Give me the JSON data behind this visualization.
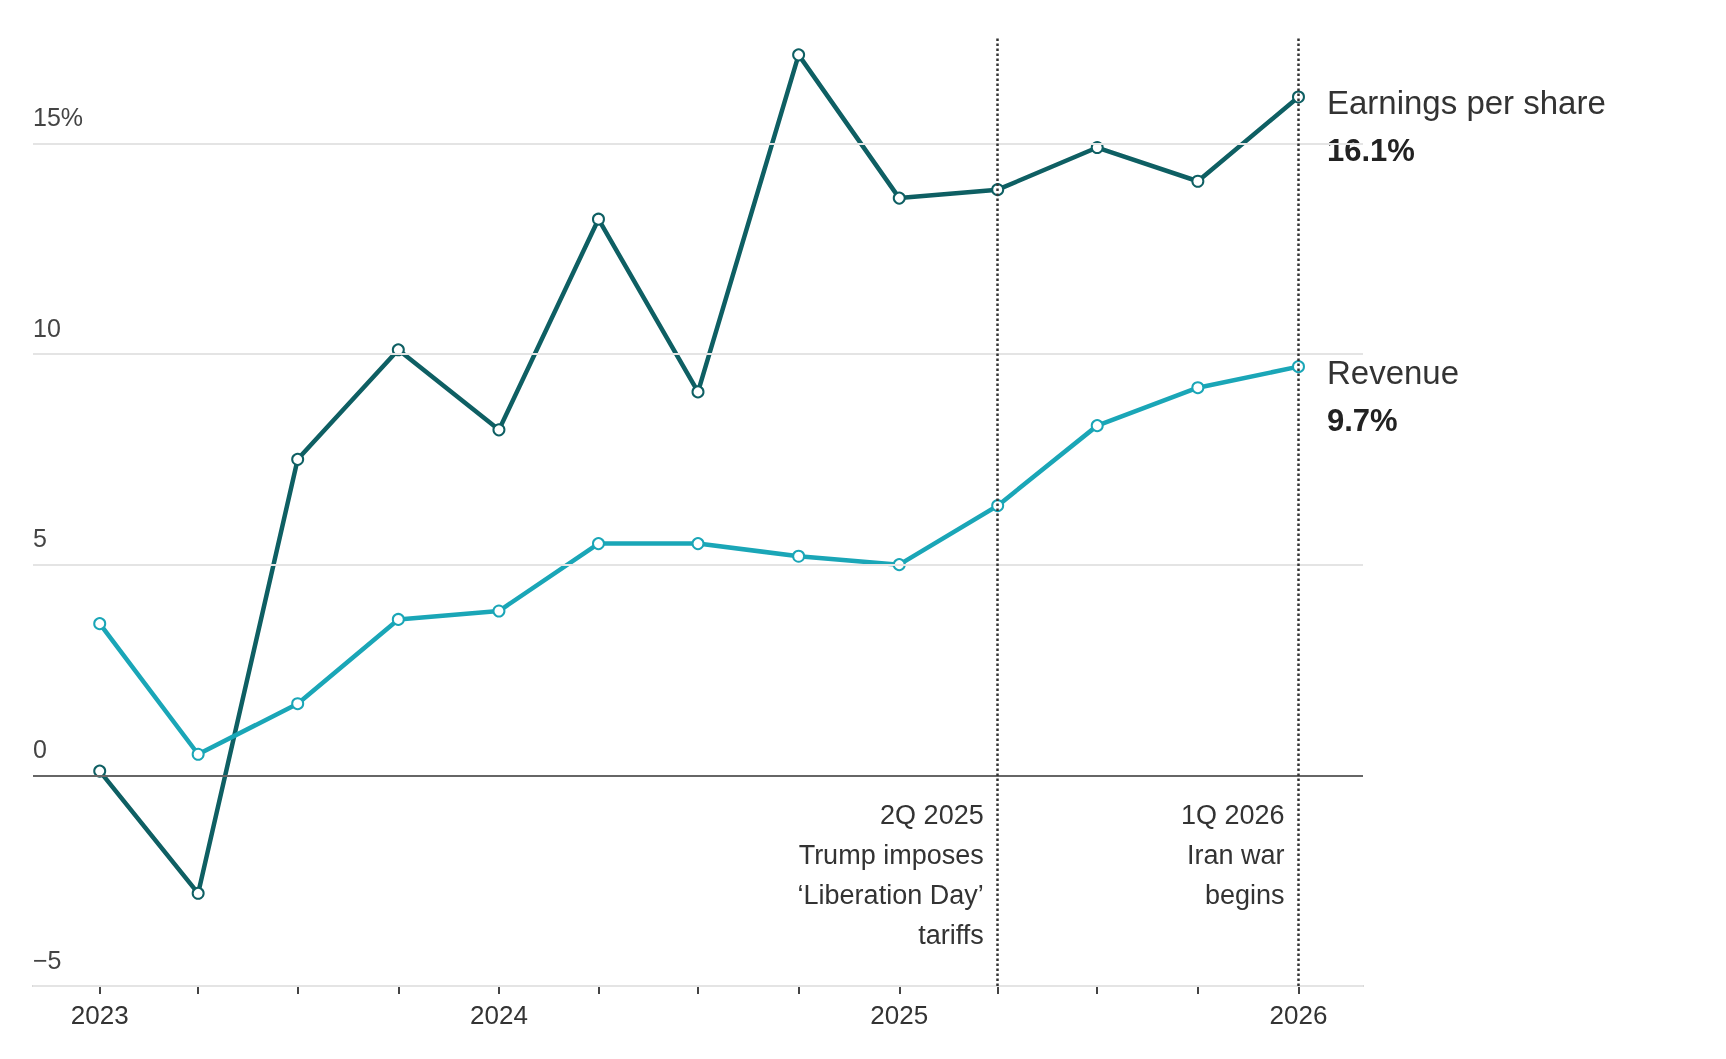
{
  "chart_data": {
    "type": "line",
    "x": [
      "2023-01",
      "2023-04",
      "2023-07",
      "2023-10",
      "2024-01",
      "2024-04",
      "2024-07",
      "2024-10",
      "2025-01",
      "2025-04",
      "2025-07",
      "2025-10",
      "2026-01"
    ],
    "series": [
      {
        "name": "Earnings per share",
        "color": "#0e5f63",
        "values": [
          0.1,
          -2.8,
          7.5,
          10.1,
          8.2,
          13.2,
          9.1,
          17.1,
          13.7,
          13.9,
          14.9,
          14.1,
          16.1
        ],
        "value_labels": [
          null,
          null,
          null,
          null,
          null,
          null,
          null,
          null,
          null,
          null,
          null,
          null,
          "16.1%"
        ]
      },
      {
        "name": "Revenue",
        "color": "#1aa6b7",
        "values": [
          3.6,
          0.5,
          1.7,
          3.7,
          3.9,
          5.5,
          5.5,
          5.2,
          5.0,
          6.4,
          8.3,
          9.2,
          9.7
        ],
        "value_labels": [
          null,
          null,
          null,
          null,
          null,
          null,
          null,
          null,
          null,
          null,
          null,
          null,
          "9.7%"
        ]
      }
    ],
    "xlim": [
      "2022-11",
      "2026-03"
    ],
    "xticks": [
      {
        "value": "2023-01",
        "label": "2023"
      },
      {
        "value": "2023-04",
        "label": null
      },
      {
        "value": "2023-07",
        "label": null
      },
      {
        "value": "2023-10",
        "label": null
      },
      {
        "value": "2024-01",
        "label": "2024"
      },
      {
        "value": "2024-04",
        "label": null
      },
      {
        "value": "2024-07",
        "label": null
      },
      {
        "value": "2024-10",
        "label": null
      },
      {
        "value": "2025-01",
        "label": "2025"
      },
      {
        "value": "2025-04",
        "label": null
      },
      {
        "value": "2025-07",
        "label": null
      },
      {
        "value": "2025-10",
        "label": null
      },
      {
        "value": "2026-01",
        "label": "2026"
      }
    ],
    "ylim": [
      -5,
      17.5
    ],
    "yticks": [
      {
        "value": -5,
        "label": "−5"
      },
      0,
      5,
      10,
      {
        "value": 15,
        "label": "15%"
      }
    ],
    "ref_lines": [
      {
        "axis": "y",
        "value": 0,
        "color": "#666666",
        "line_style": "solid"
      },
      {
        "axis": "x",
        "value": "2025-04",
        "label": "2Q 2025\nTrump imposes\n‘Liberation Day’\ntariffs",
        "color": "#333333",
        "line_style": "dotted"
      },
      {
        "axis": "x",
        "value": "2026-01",
        "label": "1Q 2026\nIran war\nbegins",
        "color": "#333333",
        "line_style": "dotted"
      }
    ],
    "grid": "y",
    "legend": false,
    "marker": "circle",
    "line_style": "solid"
  }
}
